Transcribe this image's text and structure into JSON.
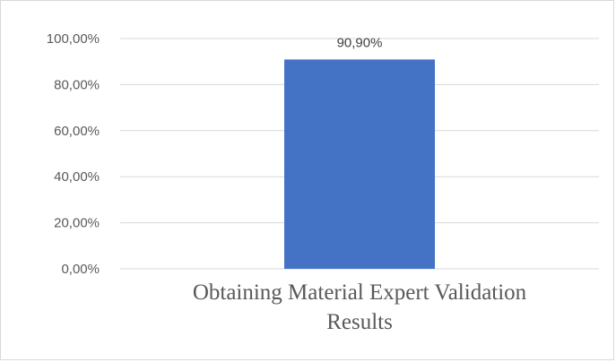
{
  "chart_data": {
    "type": "bar",
    "categories": [
      "Obtaining Material Expert Validation Results"
    ],
    "category_label_lines": [
      "Obtaining Material Expert Validation",
      "Results"
    ],
    "values": [
      90.9
    ],
    "value_labels": [
      "90,90%"
    ],
    "ylim": [
      0,
      100
    ],
    "y_ticks": [
      0,
      20,
      40,
      60,
      80,
      100
    ],
    "y_tick_labels": [
      "0,00%",
      "20,00%",
      "40,00%",
      "60,00%",
      "80,00%",
      "100,00%"
    ],
    "grid": true,
    "legend": "none",
    "bar_color": "#4472c4",
    "grid_color": "#d9d9d9"
  }
}
